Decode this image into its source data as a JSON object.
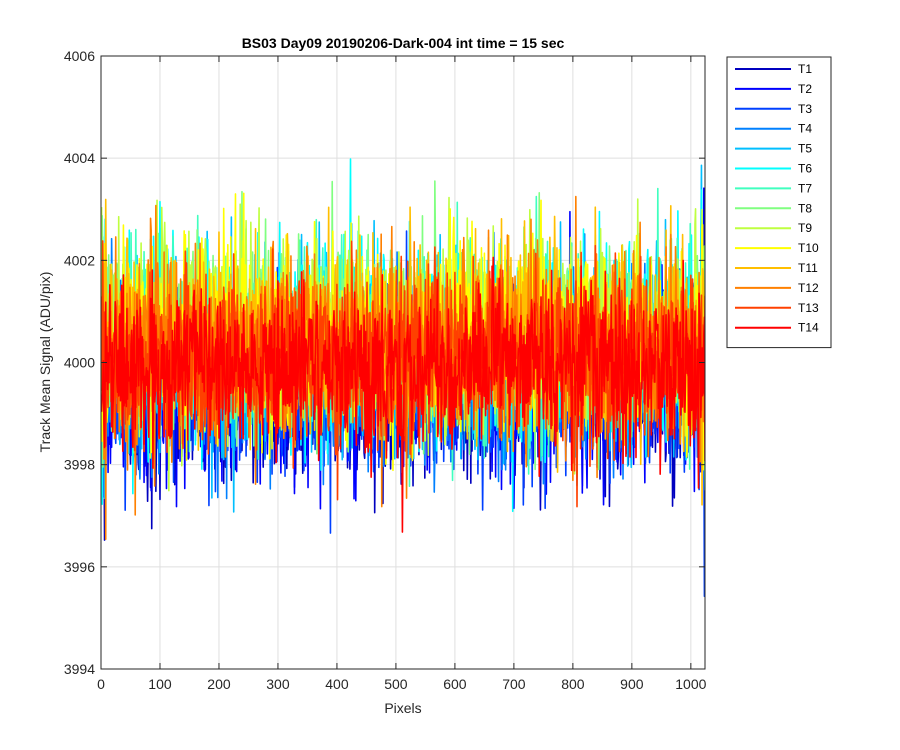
{
  "chart_data": {
    "type": "line",
    "title": "BS03 Day09 20190206-Dark-004 int time = 15 sec",
    "xlabel": "Pixels",
    "ylabel": "Track Mean Signal (ADU/pix)",
    "xlim": [
      0,
      1024
    ],
    "ylim": [
      3994,
      4006
    ],
    "xticks": [
      0,
      100,
      200,
      300,
      400,
      500,
      600,
      700,
      800,
      900,
      1000
    ],
    "yticks": [
      3994,
      3996,
      3998,
      4000,
      4002,
      4004,
      4006
    ],
    "grid": true,
    "legend_position": "outside-top-right",
    "n_points_per_series": 1024,
    "series": [
      {
        "name": "T1",
        "color": "#0000bf",
        "mean": 3999.4,
        "spread": 0.85
      },
      {
        "name": "T2",
        "color": "#0000ff",
        "mean": 3999.5,
        "spread": 0.85
      },
      {
        "name": "T3",
        "color": "#0040ff",
        "mean": 3999.7,
        "spread": 0.85
      },
      {
        "name": "T4",
        "color": "#0080ff",
        "mean": 3999.9,
        "spread": 0.9
      },
      {
        "name": "T5",
        "color": "#00bfff",
        "mean": 4000.2,
        "spread": 0.95
      },
      {
        "name": "T6",
        "color": "#00ffff",
        "mean": 4000.4,
        "spread": 0.95
      },
      {
        "name": "T7",
        "color": "#40ffbf",
        "mean": 4000.4,
        "spread": 0.9
      },
      {
        "name": "T8",
        "color": "#80ff80",
        "mean": 4000.5,
        "spread": 0.9
      },
      {
        "name": "T9",
        "color": "#bfff40",
        "mean": 4000.5,
        "spread": 0.9
      },
      {
        "name": "T10",
        "color": "#ffff00",
        "mean": 4000.5,
        "spread": 0.9
      },
      {
        "name": "T11",
        "color": "#ffbf00",
        "mean": 4000.4,
        "spread": 0.9
      },
      {
        "name": "T12",
        "color": "#ff8000",
        "mean": 4000.3,
        "spread": 0.9
      },
      {
        "name": "T13",
        "color": "#ff4000",
        "mean": 4000.1,
        "spread": 0.85
      },
      {
        "name": "T14",
        "color": "#ff0000",
        "mean": 3999.9,
        "spread": 0.8
      }
    ]
  }
}
